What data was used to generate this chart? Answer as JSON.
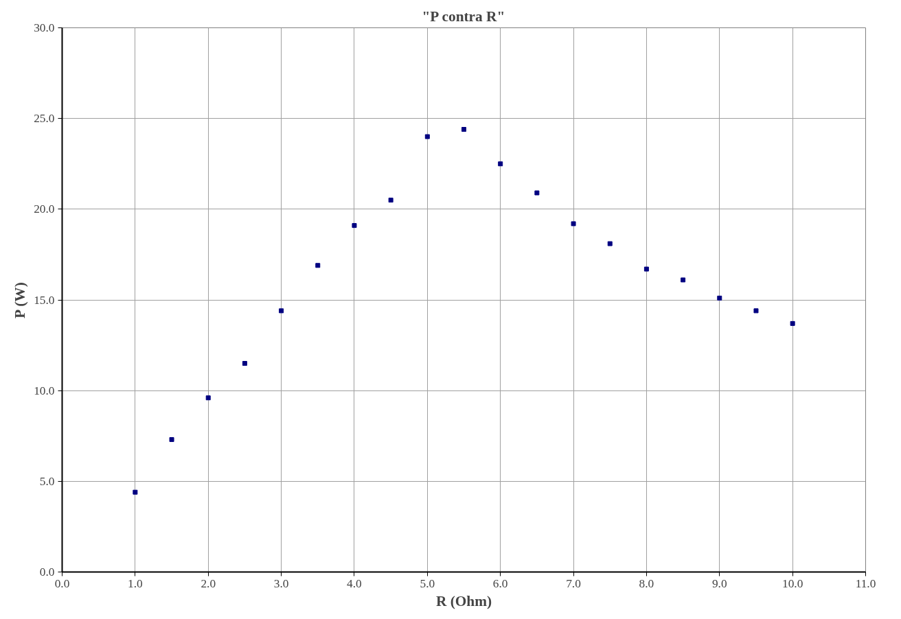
{
  "chart_data": {
    "type": "scatter",
    "title": "\"P contra R\"",
    "xlabel": "R (Ohm)",
    "ylabel": "P (W)",
    "x": [
      1.0,
      1.5,
      2.0,
      2.5,
      3.0,
      3.5,
      4.0,
      4.5,
      5.0,
      5.5,
      6.0,
      6.5,
      7.0,
      7.5,
      8.0,
      8.5,
      9.0,
      9.5,
      10.0
    ],
    "series": [
      {
        "color": "#000080",
        "values": [
          4.4,
          7.3,
          9.6,
          11.5,
          14.4,
          16.9,
          19.1,
          20.5,
          24.0,
          24.4,
          22.5,
          20.9,
          19.2,
          18.1,
          16.7,
          16.1,
          15.1,
          14.4,
          13.7
        ]
      }
    ],
    "xlim": [
      0,
      11
    ],
    "ylim": [
      0,
      30
    ],
    "xticks": [
      {
        "value": 0,
        "label": "0.0"
      },
      {
        "value": 1,
        "label": "1.0"
      },
      {
        "value": 2,
        "label": "2.0"
      },
      {
        "value": 3,
        "label": "3.0"
      },
      {
        "value": 4,
        "label": "4.0"
      },
      {
        "value": 5,
        "label": "5.0"
      },
      {
        "value": 6,
        "label": "6.0"
      },
      {
        "value": 7,
        "label": "7.0"
      },
      {
        "value": 8,
        "label": "8.0"
      },
      {
        "value": 9,
        "label": "9.0"
      },
      {
        "value": 10,
        "label": "10.0"
      },
      {
        "value": 11,
        "label": "11.0"
      }
    ],
    "yticks": [
      {
        "value": 0,
        "label": "0.0"
      },
      {
        "value": 5,
        "label": "5.0"
      },
      {
        "value": 10,
        "label": "10.0"
      },
      {
        "value": 15,
        "label": "15.0"
      },
      {
        "value": 20,
        "label": "20.0"
      },
      {
        "value": 25,
        "label": "25.0"
      },
      {
        "value": 30,
        "label": "30.0"
      }
    ],
    "grid": true,
    "marker": "square"
  }
}
